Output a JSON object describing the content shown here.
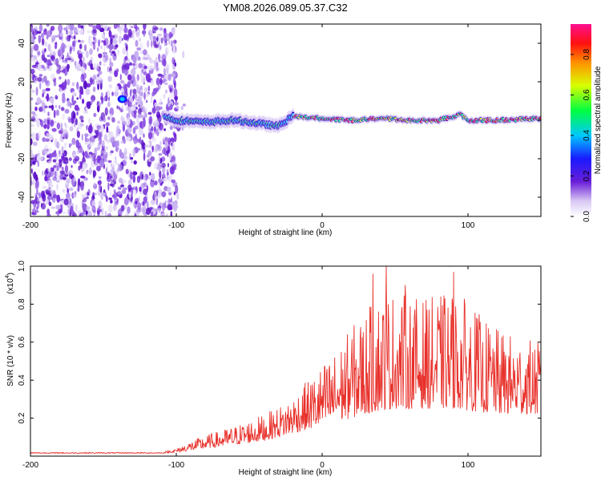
{
  "title": "YM08.2026.089.05.37.C32",
  "chart_data": [
    {
      "type": "heatmap",
      "title": "YM08.2026.089.05.37.C32",
      "xlabel": "Height of straight line (km)",
      "ylabel": "Frequency (Hz)",
      "xlim": [
        -200,
        150
      ],
      "ylim": [
        -50,
        50
      ],
      "xticks": [
        -200,
        -100,
        0,
        100
      ],
      "yticks": [
        -40,
        -20,
        0,
        20,
        40
      ],
      "ridge": {
        "description_x": [
          -108,
          -100,
          -80,
          -60,
          -40,
          -30,
          -20,
          0,
          20,
          40,
          60,
          80,
          95,
          100,
          120,
          150
        ],
        "frequency_hz": [
          2,
          0,
          -1,
          0,
          -2,
          -3,
          2,
          1,
          0,
          1,
          0,
          0,
          3,
          0,
          0,
          1
        ]
      },
      "colorbar": {
        "label": "Normalized spectral amplitude",
        "ticks": [
          0.0,
          0.2,
          0.4,
          0.6,
          0.8
        ],
        "range": [
          0,
          0.95
        ]
      }
    },
    {
      "type": "line",
      "xlabel": "Height of straight line (km)",
      "ylabel": "SNR (10 * v/v)",
      "scale_label": "(x10",
      "scale_exp": "4",
      "scale_close": ")",
      "xlim": [
        -200,
        150
      ],
      "ylim": [
        0,
        1.0
      ],
      "xticks": [
        -200,
        -100,
        0,
        100
      ],
      "yticks": [
        0.2,
        0.4,
        0.6,
        0.8,
        1.0
      ],
      "color": "#e8302a",
      "envelope": {
        "x": [
          -200,
          -110,
          -100,
          -90,
          -80,
          -60,
          -40,
          -30,
          -20,
          -10,
          0,
          10,
          20,
          30,
          40,
          50,
          60,
          70,
          80,
          90,
          100,
          110,
          120,
          130,
          140,
          150
        ],
        "baseline": [
          0.015,
          0.015,
          0.02,
          0.03,
          0.04,
          0.06,
          0.08,
          0.1,
          0.12,
          0.14,
          0.16,
          0.18,
          0.2,
          0.22,
          0.24,
          0.25,
          0.25,
          0.25,
          0.25,
          0.25,
          0.24,
          0.23,
          0.22,
          0.22,
          0.22,
          0.22
        ],
        "amplitude": [
          0.005,
          0.005,
          0.02,
          0.05,
          0.07,
          0.1,
          0.14,
          0.16,
          0.2,
          0.26,
          0.32,
          0.38,
          0.48,
          0.55,
          0.62,
          0.62,
          0.6,
          0.58,
          0.6,
          0.62,
          0.58,
          0.5,
          0.45,
          0.42,
          0.4,
          0.38
        ]
      },
      "peaks": [
        [
          44,
          1.0
        ],
        [
          35,
          0.96
        ],
        [
          57,
          0.9
        ],
        [
          90,
          0.97
        ],
        [
          118,
          0.55
        ],
        [
          110,
          0.6
        ]
      ]
    }
  ]
}
